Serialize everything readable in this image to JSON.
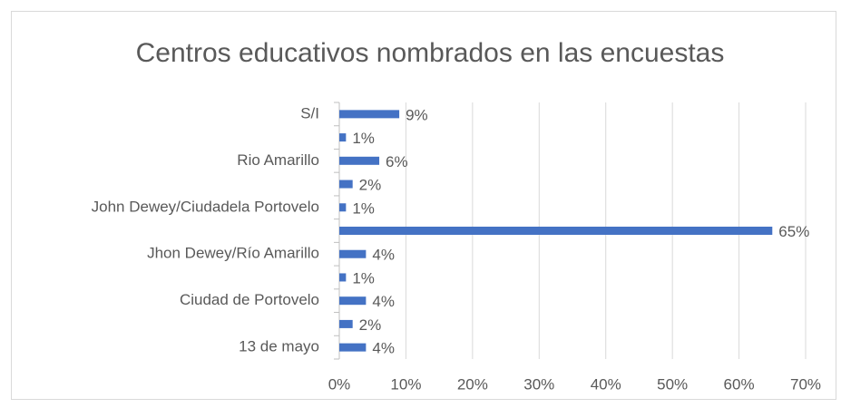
{
  "chart_data": {
    "type": "bar",
    "orientation": "horizontal",
    "title": "Centros educativos nombrados en las encuestas",
    "categories": [
      "S/I",
      null,
      "Rio Amarillo",
      null,
      "John Dewey/Ciudadela Portovelo",
      null,
      "Jhon Dewey/Río Amarillo",
      null,
      "Ciudad de Portovelo",
      null,
      "13 de mayo"
    ],
    "values": [
      9,
      1,
      6,
      2,
      1,
      65,
      4,
      1,
      4,
      2,
      4
    ],
    "value_labels": [
      "9%",
      "1%",
      "6%",
      "2%",
      "1%",
      "65%",
      "4%",
      "1%",
      "4%",
      "2%",
      "4%"
    ],
    "color": "#4472c4",
    "xlim": [
      0,
      70
    ],
    "xticks": [
      {
        "value": 0,
        "label": "0%"
      },
      {
        "value": 10,
        "label": "10%"
      },
      {
        "value": 20,
        "label": "20%"
      },
      {
        "value": 30,
        "label": "30%"
      },
      {
        "value": 40,
        "label": "40%"
      },
      {
        "value": 50,
        "label": "50%"
      },
      {
        "value": 60,
        "label": "60%"
      },
      {
        "value": 70,
        "label": "70%"
      }
    ],
    "grid": true
  }
}
